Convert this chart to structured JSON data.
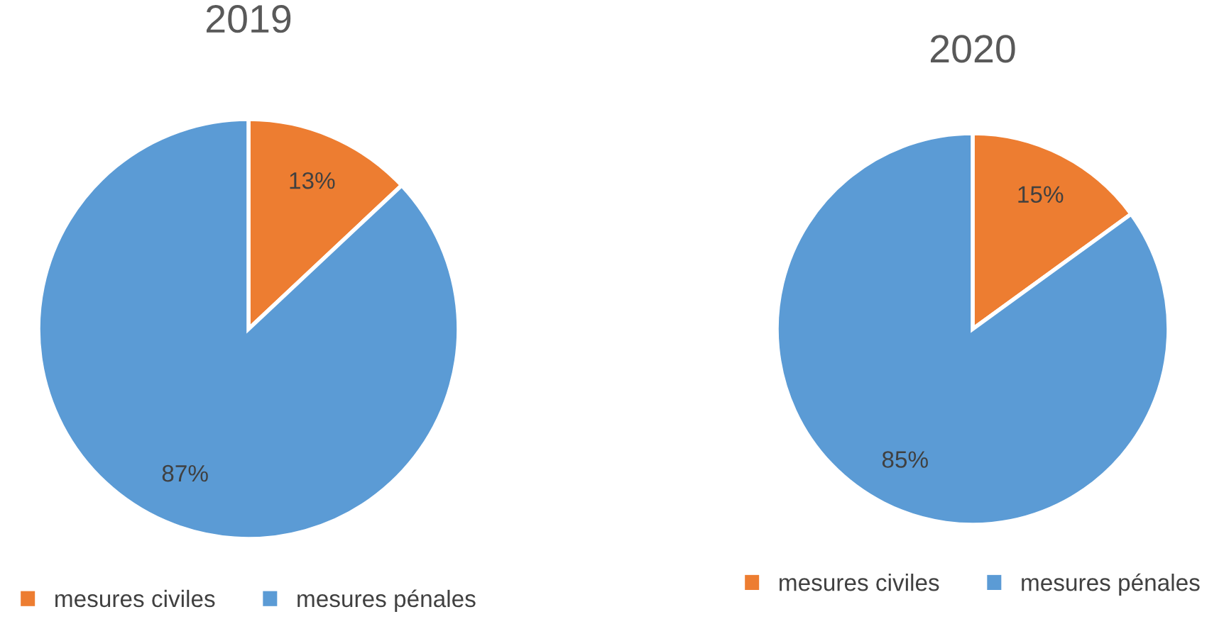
{
  "chart_data": [
    {
      "type": "pie",
      "title": "2019",
      "categories": [
        "mesures civiles",
        "mesures pénales"
      ],
      "values": [
        13,
        87
      ],
      "colors": [
        "#ed7d31",
        "#5b9bd5"
      ],
      "value_labels": [
        "13%",
        "87%"
      ],
      "legend": "bottom"
    },
    {
      "type": "pie",
      "title": "2020",
      "categories": [
        "mesures civiles",
        "mesures pénales"
      ],
      "values": [
        15,
        85
      ],
      "colors": [
        "#ed7d31",
        "#5b9bd5"
      ],
      "value_labels": [
        "15%",
        "85%"
      ],
      "legend": "bottom"
    }
  ]
}
